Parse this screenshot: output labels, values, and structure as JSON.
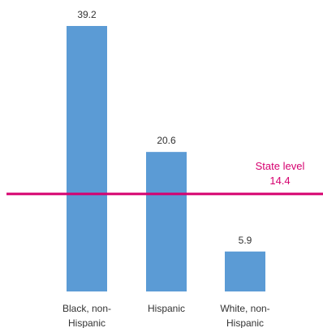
{
  "chart_data": {
    "type": "bar",
    "categories": [
      [
        "Black, non-",
        "Hispanic"
      ],
      [
        "Hispanic"
      ],
      [
        "White, non-",
        "Hispanic"
      ]
    ],
    "values": [
      39.2,
      20.6,
      5.9
    ],
    "value_labels": [
      "39.2",
      "20.6",
      "5.9"
    ],
    "reference_line": {
      "label": "State level",
      "value": 14.4,
      "value_label": "14.4"
    },
    "ylim": [
      0,
      39.2
    ],
    "grid": false,
    "legend": "none",
    "colors": {
      "bar": "#5b9bd5",
      "reference_line": "#d6006f"
    }
  }
}
